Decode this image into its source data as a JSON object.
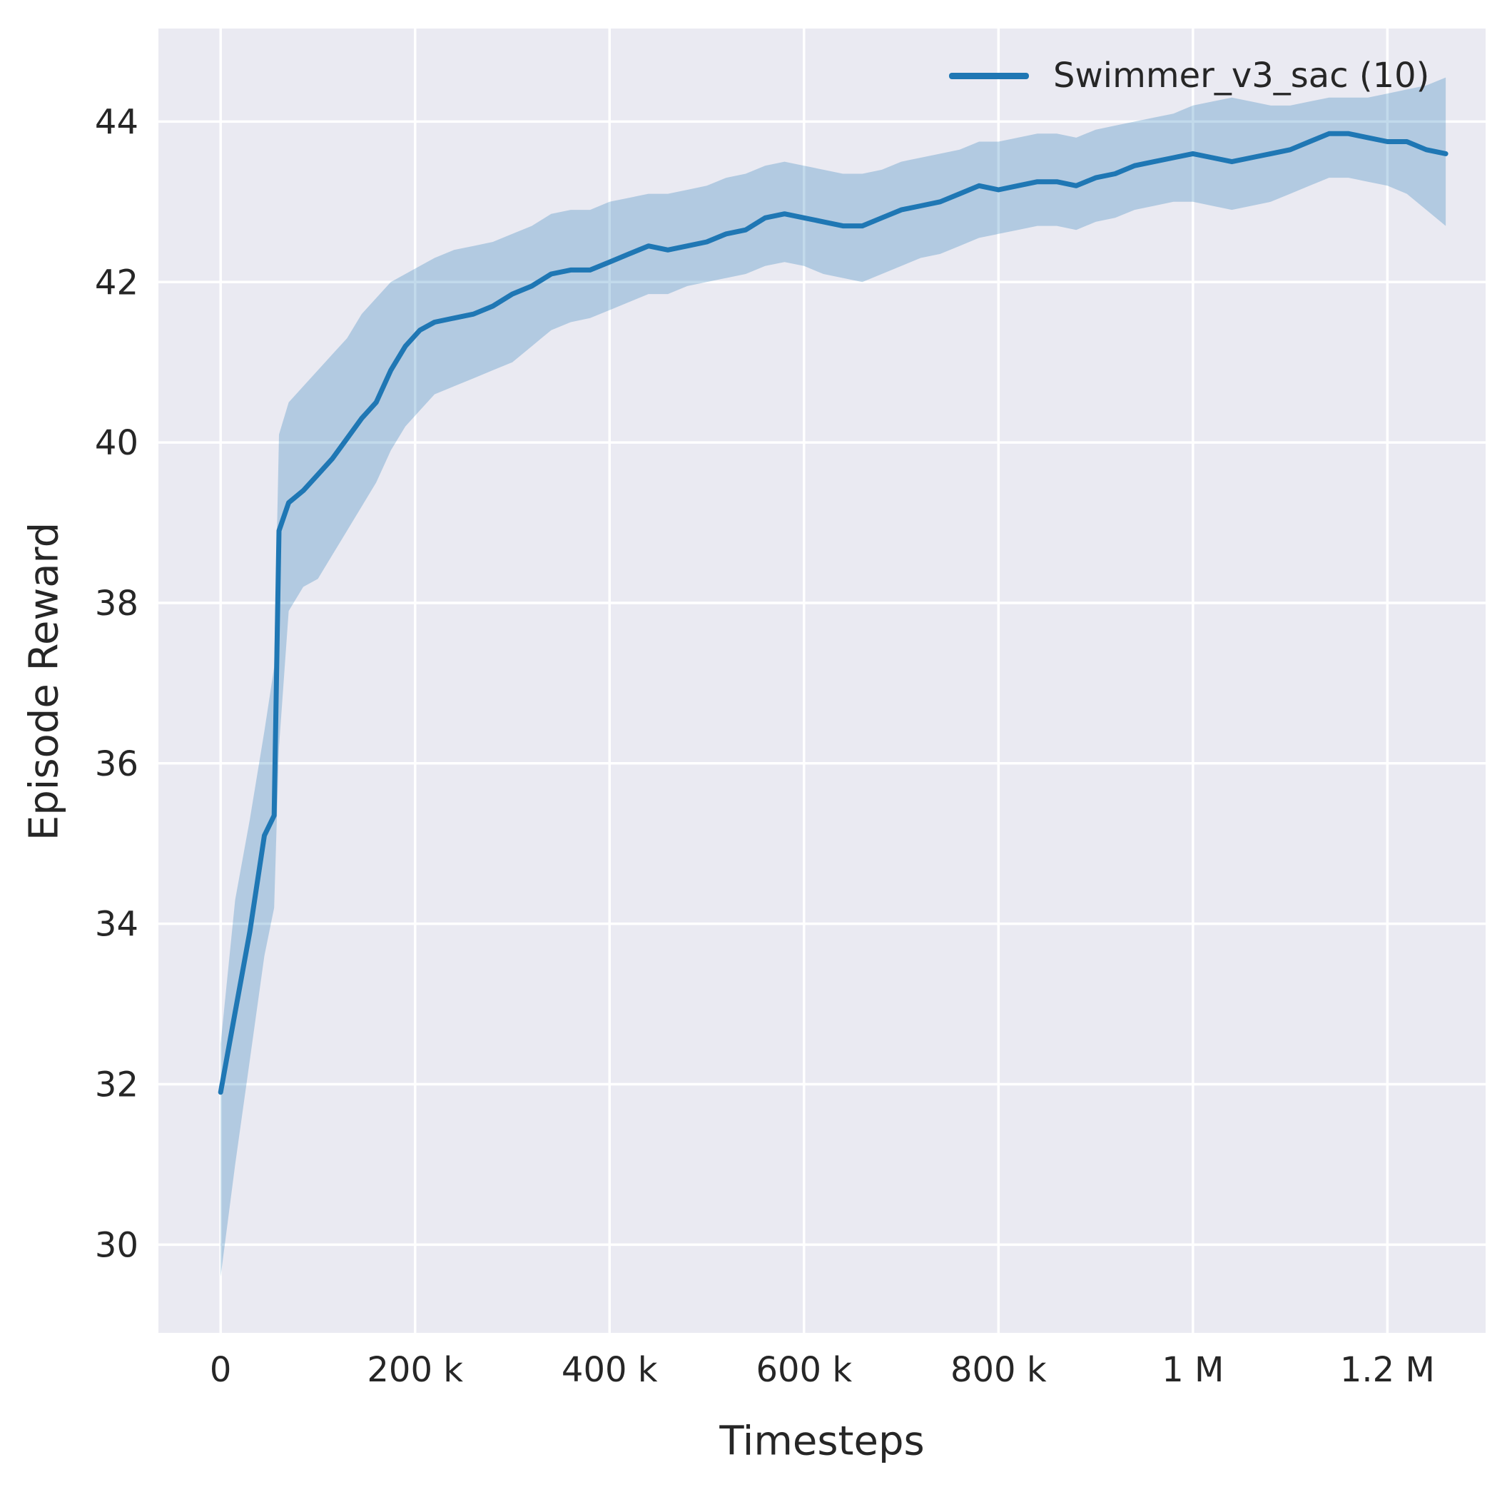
{
  "colors": {
    "axes_background": "#eaeaf2",
    "grid": "#ffffff",
    "line": "#1f77b4",
    "band": "rgba(31,119,180,0.27)",
    "text": "#262626"
  },
  "chart_data": {
    "type": "line",
    "title": "",
    "xlabel": "Timesteps",
    "ylabel": "Episode Reward",
    "xlim": [
      -64000,
      1301000
    ],
    "ylim": [
      28.9,
      45.16
    ],
    "grid": true,
    "x_ticks": [
      0,
      200000,
      400000,
      600000,
      800000,
      1000000,
      1200000
    ],
    "x_tick_labels": [
      "0",
      "200 k",
      "400 k",
      "600 k",
      "800 k",
      "1 M",
      "1.2 M"
    ],
    "y_ticks": [
      30,
      32,
      34,
      36,
      38,
      40,
      42,
      44
    ],
    "y_tick_labels": [
      "30",
      "32",
      "34",
      "36",
      "38",
      "40",
      "42",
      "44"
    ],
    "legend": {
      "position": "upper right",
      "entries": [
        {
          "label": "Swimmer_v3_sac (10)",
          "color": "#1f77b4"
        }
      ]
    },
    "series": [
      {
        "name": "Swimmer_v3_sac (10)",
        "color": "#1f77b4",
        "x": [
          0,
          15000,
          30000,
          45000,
          55000,
          60000,
          70000,
          85000,
          100000,
          115000,
          130000,
          145000,
          160000,
          175000,
          190000,
          205000,
          220000,
          240000,
          260000,
          280000,
          300000,
          320000,
          340000,
          360000,
          380000,
          400000,
          420000,
          440000,
          460000,
          480000,
          500000,
          520000,
          540000,
          560000,
          580000,
          600000,
          620000,
          640000,
          660000,
          680000,
          700000,
          720000,
          740000,
          760000,
          780000,
          800000,
          820000,
          840000,
          860000,
          880000,
          900000,
          920000,
          940000,
          960000,
          980000,
          1000000,
          1020000,
          1040000,
          1060000,
          1080000,
          1100000,
          1120000,
          1140000,
          1160000,
          1180000,
          1200000,
          1220000,
          1240000,
          1260000
        ],
        "mean": [
          31.9,
          32.9,
          33.9,
          35.1,
          35.35,
          38.9,
          39.25,
          39.4,
          39.6,
          39.8,
          40.05,
          40.3,
          40.5,
          40.9,
          41.2,
          41.4,
          41.5,
          41.55,
          41.6,
          41.7,
          41.85,
          41.95,
          42.1,
          42.15,
          42.15,
          42.25,
          42.35,
          42.45,
          42.4,
          42.45,
          42.5,
          42.6,
          42.65,
          42.8,
          42.85,
          42.8,
          42.75,
          42.7,
          42.7,
          42.8,
          42.9,
          42.95,
          43.0,
          43.1,
          43.2,
          43.15,
          43.2,
          43.25,
          43.25,
          43.2,
          43.3,
          43.35,
          43.45,
          43.5,
          43.55,
          43.6,
          43.55,
          43.5,
          43.55,
          43.6,
          43.65,
          43.75,
          43.85,
          43.85,
          43.8,
          43.75,
          43.75,
          43.65,
          43.6
        ],
        "band_lower": [
          29.6,
          31.0,
          32.3,
          33.6,
          34.2,
          36.2,
          37.9,
          38.2,
          38.3,
          38.6,
          38.9,
          39.2,
          39.5,
          39.9,
          40.2,
          40.4,
          40.6,
          40.7,
          40.8,
          40.9,
          41.0,
          41.2,
          41.4,
          41.5,
          41.55,
          41.65,
          41.75,
          41.85,
          41.85,
          41.95,
          42.0,
          42.05,
          42.1,
          42.2,
          42.25,
          42.2,
          42.1,
          42.05,
          42.0,
          42.1,
          42.2,
          42.3,
          42.35,
          42.45,
          42.55,
          42.6,
          42.65,
          42.7,
          42.7,
          42.65,
          42.75,
          42.8,
          42.9,
          42.95,
          43.0,
          43.0,
          42.95,
          42.9,
          42.95,
          43.0,
          43.1,
          43.2,
          43.3,
          43.3,
          43.25,
          43.2,
          43.1,
          42.9,
          42.7
        ],
        "band_upper": [
          32.5,
          34.3,
          35.3,
          36.4,
          37.2,
          40.1,
          40.5,
          40.7,
          40.9,
          41.1,
          41.3,
          41.6,
          41.8,
          42.0,
          42.1,
          42.2,
          42.3,
          42.4,
          42.45,
          42.5,
          42.6,
          42.7,
          42.85,
          42.9,
          42.9,
          43.0,
          43.05,
          43.1,
          43.1,
          43.15,
          43.2,
          43.3,
          43.35,
          43.45,
          43.5,
          43.45,
          43.4,
          43.35,
          43.35,
          43.4,
          43.5,
          43.55,
          43.6,
          43.65,
          43.75,
          43.75,
          43.8,
          43.85,
          43.85,
          43.8,
          43.9,
          43.95,
          44.0,
          44.05,
          44.1,
          44.2,
          44.25,
          44.3,
          44.25,
          44.2,
          44.2,
          44.25,
          44.3,
          44.3,
          44.3,
          44.35,
          44.4,
          44.45,
          44.55
        ]
      }
    ]
  }
}
